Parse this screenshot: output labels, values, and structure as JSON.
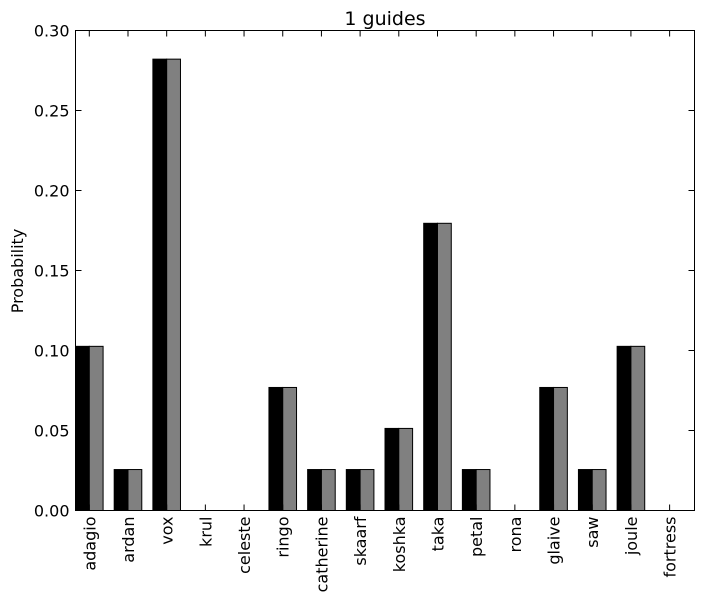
{
  "chart_data": {
    "type": "bar",
    "title": "1 guides",
    "xlabel": "",
    "ylabel": "Probability",
    "ylim": [
      0,
      0.3
    ],
    "yticks": [
      "0.00",
      "0.05",
      "0.10",
      "0.15",
      "0.20",
      "0.25",
      "0.30"
    ],
    "grid": false,
    "categories": [
      "adagio",
      "ardan",
      "vox",
      "krul",
      "celeste",
      "ringo",
      "catherine",
      "skaarf",
      "koshka",
      "taka",
      "petal",
      "rona",
      "glaive",
      "saw",
      "joule",
      "fortress"
    ],
    "series": [
      {
        "color": "#000000",
        "values": [
          0.1026,
          0.0256,
          0.2821,
          0,
          0,
          0.0769,
          0.0256,
          0.0256,
          0.0513,
          0.1795,
          0.0256,
          0,
          0.0769,
          0.0256,
          0.1026,
          0
        ]
      },
      {
        "color": "#808080",
        "values": [
          0.1026,
          0.0256,
          0.2821,
          0,
          0,
          0.0769,
          0.0256,
          0.0256,
          0.0513,
          0.1795,
          0.0256,
          0,
          0.0769,
          0.0256,
          0.1026,
          0
        ]
      }
    ]
  }
}
